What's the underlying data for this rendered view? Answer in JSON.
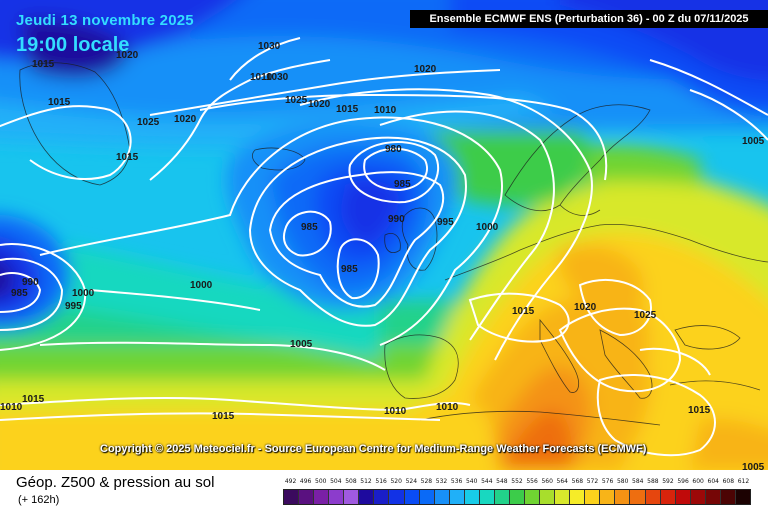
{
  "map": {
    "date_text": "Jeudi 13 novembre 2025",
    "time_text": "19:00 locale",
    "header_text": "Ensemble ECMWF ENS  (Perturbation 36)  - 00 Z du 07/11/2025",
    "copyright": "Copyright © 2025 Meteociel.fr - Source European Centre for Medium-Range Weather Forecasts (ECMWF)",
    "isobar_labels": [
      "1015",
      "1015",
      "1020",
      "1030",
      "1010",
      "1030",
      "1020",
      "1025",
      "1020",
      "1015",
      "1010",
      "1025",
      "1020",
      "1015",
      "980",
      "985",
      "995",
      "990",
      "1000",
      "985",
      "985",
      "990",
      "985",
      "995",
      "1000",
      "1000",
      "1005",
      "1015",
      "1015",
      "1025",
      "1020",
      "1015",
      "1010",
      "1010",
      "1010",
      "1015",
      "1005",
      "1005"
    ]
  },
  "legend": {
    "title": "Géop. Z500 & pression au sol",
    "subtitle": "(+ 162h)",
    "values": [
      "492",
      "496",
      "500",
      "504",
      "508",
      "512",
      "516",
      "520",
      "524",
      "528",
      "532",
      "536",
      "540",
      "544",
      "548",
      "552",
      "556",
      "560",
      "564",
      "568",
      "572",
      "576",
      "580",
      "584",
      "588",
      "592",
      "596",
      "600",
      "604",
      "608",
      "612"
    ],
    "colors": [
      "#3b0a5e",
      "#5a1180",
      "#7a20a6",
      "#8c3ccc",
      "#a05ae0",
      "#1e0a9e",
      "#1a1ec8",
      "#1232e6",
      "#0a4cf5",
      "#0a6af7",
      "#1890f8",
      "#20b0f8",
      "#18cce8",
      "#18d8c0",
      "#22d28a",
      "#3ccc4a",
      "#70d432",
      "#a8de2c",
      "#d8e82c",
      "#f6ec28",
      "#fcd21c",
      "#f8b418",
      "#f49214",
      "#ee6e10",
      "#e6460e",
      "#d8240c",
      "#c00a0a",
      "#9c0808",
      "#760606",
      "#4c0404",
      "#1c0202"
    ]
  }
}
